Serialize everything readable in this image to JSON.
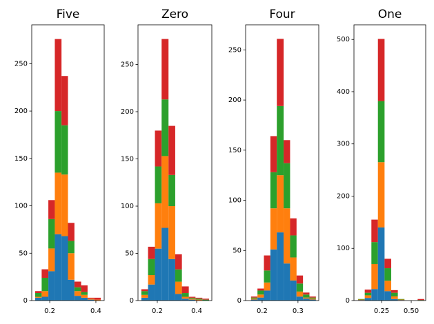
{
  "chart_data": [
    {
      "type": "histogram",
      "title": "Five",
      "bins": [
        0.137,
        0.165,
        0.194,
        0.222,
        0.251,
        0.279,
        0.307,
        0.336,
        0.364,
        0.393,
        0.421
      ],
      "series": [
        {
          "color": "#1f77b4",
          "values": [
            3,
            4,
            31,
            70,
            68,
            22,
            5,
            3,
            1,
            0
          ]
        },
        {
          "color": "#ff7f0e",
          "values": [
            1,
            6,
            24,
            65,
            65,
            28,
            5,
            3,
            1,
            1
          ]
        },
        {
          "color": "#2ca02c",
          "values": [
            4,
            14,
            31,
            65,
            52,
            13,
            4,
            3,
            0,
            0
          ]
        },
        {
          "color": "#d62728",
          "values": [
            2,
            9,
            20,
            76,
            52,
            19,
            6,
            7,
            1,
            2
          ]
        }
      ],
      "xlim": [
        0.122,
        0.436
      ],
      "ylim": [
        0,
        291
      ],
      "xticks": [
        0.2,
        0.4
      ],
      "yticks": [
        0,
        50,
        100,
        150,
        200,
        250
      ]
    },
    {
      "type": "histogram",
      "title": "Zero",
      "bins": [
        0.119,
        0.153,
        0.188,
        0.222,
        0.257,
        0.291,
        0.325,
        0.36,
        0.394,
        0.429,
        0.463
      ],
      "series": [
        {
          "color": "#1f77b4",
          "values": [
            3,
            17,
            55,
            77,
            44,
            7,
            2,
            1,
            0,
            0
          ]
        },
        {
          "color": "#ff7f0e",
          "values": [
            3,
            10,
            48,
            76,
            56,
            13,
            2,
            1,
            1,
            0
          ]
        },
        {
          "color": "#2ca02c",
          "values": [
            4,
            17,
            39,
            60,
            33,
            13,
            4,
            1,
            1,
            1
          ]
        },
        {
          "color": "#d62728",
          "values": [
            2,
            13,
            38,
            64,
            52,
            16,
            7,
            1,
            1,
            1
          ]
        }
      ],
      "xlim": [
        0.102,
        0.477
      ],
      "ylim": [
        0,
        292
      ],
      "xticks": [
        0.2,
        0.4
      ],
      "yticks": [
        0,
        50,
        100,
        150,
        200,
        250
      ]
    },
    {
      "type": "histogram",
      "title": "Four",
      "bins": [
        0.169,
        0.187,
        0.205,
        0.223,
        0.241,
        0.26,
        0.278,
        0.296,
        0.314,
        0.332,
        0.35
      ],
      "series": [
        {
          "color": "#1f77b4",
          "values": [
            1,
            3,
            10,
            51,
            68,
            37,
            20,
            4,
            2,
            1
          ]
        },
        {
          "color": "#ff7f0e",
          "values": [
            1,
            3,
            8,
            41,
            57,
            55,
            23,
            5,
            1,
            1
          ]
        },
        {
          "color": "#2ca02c",
          "values": [
            1,
            4,
            12,
            36,
            69,
            45,
            22,
            8,
            3,
            1
          ]
        },
        {
          "color": "#d62728",
          "values": [
            1,
            2,
            15,
            36,
            67,
            23,
            17,
            8,
            2,
            1
          ]
        }
      ],
      "xlim": [
        0.154,
        0.358
      ],
      "ylim": [
        0,
        275
      ],
      "xticks": [
        0.2,
        0.3
      ],
      "yticks": [
        0,
        50,
        100,
        150,
        200,
        250
      ]
    },
    {
      "type": "histogram",
      "title": "One",
      "bins": [
        0.052,
        0.108,
        0.164,
        0.219,
        0.275,
        0.331,
        0.387,
        0.443,
        0.499,
        0.554,
        0.61
      ],
      "series": [
        {
          "color": "#1f77b4",
          "values": [
            1,
            5,
            22,
            140,
            18,
            3,
            1,
            0,
            0,
            0
          ]
        },
        {
          "color": "#ff7f0e",
          "values": [
            1,
            5,
            48,
            125,
            20,
            5,
            1,
            0,
            0,
            0
          ]
        },
        {
          "color": "#2ca02c",
          "values": [
            1,
            5,
            42,
            117,
            24,
            7,
            1,
            0,
            0,
            1
          ]
        },
        {
          "color": "#d62728",
          "values": [
            0,
            6,
            43,
            119,
            18,
            5,
            0,
            0,
            0,
            2
          ]
        }
      ],
      "xlim": [
        0.017,
        0.622
      ],
      "ylim": [
        0,
        528
      ],
      "xticks": [
        0.25,
        {
          "value": 0.5,
          "label": "0.50"
        }
      ],
      "yticks": [
        0,
        100,
        200,
        300,
        400,
        500
      ]
    }
  ]
}
